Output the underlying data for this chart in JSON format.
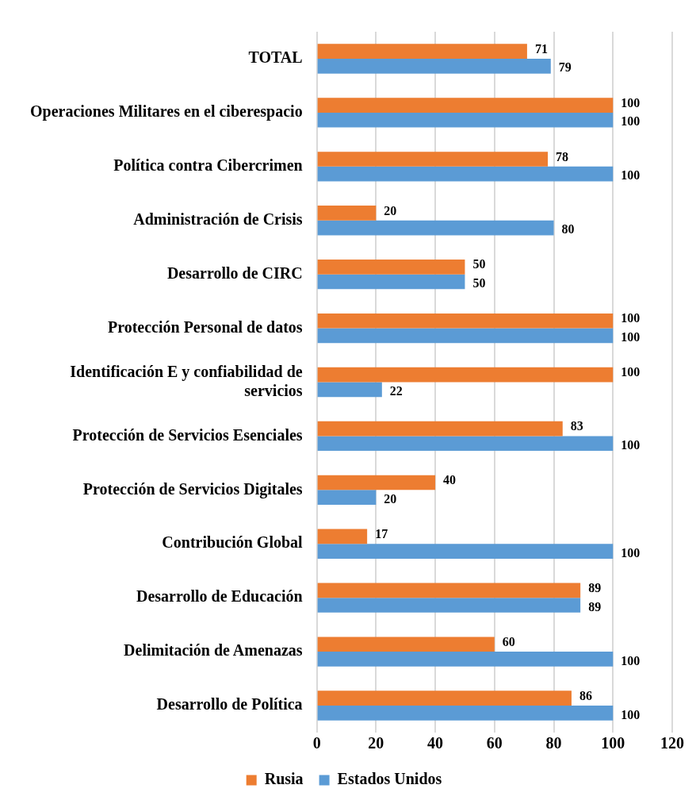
{
  "chart_data": {
    "type": "bar",
    "orientation": "horizontal",
    "categories": [
      "TOTAL",
      "Operaciones Militares en el ciberespacio",
      "Política contra Cibercrimen",
      "Administración de Crisis",
      "Desarrollo de CIRC",
      "Protección Personal de datos",
      "Identificación E y confiabilidad de servicios",
      "Protección de Servicios Esenciales",
      "Protección de Servicios Digitales",
      "Contribución Global",
      "Desarrollo de Educación",
      "Delimitación de Amenazas",
      "Desarrollo de Política"
    ],
    "series": [
      {
        "name": "Rusia",
        "color": "#ed7d31",
        "values": [
          71,
          100,
          78,
          20,
          50,
          100,
          100,
          83,
          40,
          17,
          89,
          60,
          86
        ]
      },
      {
        "name": "Estados Unidos",
        "color": "#5b9bd5",
        "values": [
          79,
          100,
          100,
          80,
          50,
          100,
          22,
          100,
          20,
          100,
          89,
          100,
          100
        ]
      }
    ],
    "xlim": [
      0,
      120
    ],
    "xticks": [
      0,
      20,
      40,
      60,
      80,
      100,
      120
    ],
    "grid": "x",
    "legend": "bottom",
    "data_labels": true
  }
}
